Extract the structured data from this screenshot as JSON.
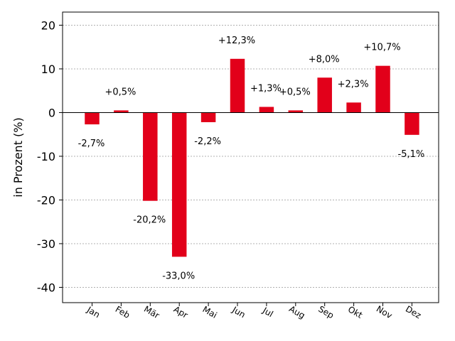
{
  "chart_data": {
    "type": "bar",
    "title": "",
    "xlabel": "",
    "ylabel": "in Prozent (%)",
    "categories": [
      "Jan",
      "Feb",
      "Mär",
      "Apr",
      "Mai",
      "Jun",
      "Jul",
      "Aug",
      "Sep",
      "Okt",
      "Nov",
      "Dez"
    ],
    "values": [
      -2.7,
      0.5,
      -20.2,
      -33.0,
      -2.2,
      12.3,
      1.3,
      0.5,
      8.0,
      2.3,
      10.7,
      -5.1
    ],
    "data_labels": [
      "-2,7%",
      "+0,5%",
      "-20,2%",
      "-33,0%",
      "-2,2%",
      "+12,3%",
      "+1,3%",
      "+0,5%",
      "+8,0%",
      "+2,3%",
      "+10,7%",
      "-5,1%"
    ],
    "yticks": [
      20,
      10,
      0,
      -10,
      -20,
      -30,
      -40
    ],
    "ylim": [
      -43.5,
      23
    ],
    "grid": true,
    "bar_color": "#e2001a"
  }
}
